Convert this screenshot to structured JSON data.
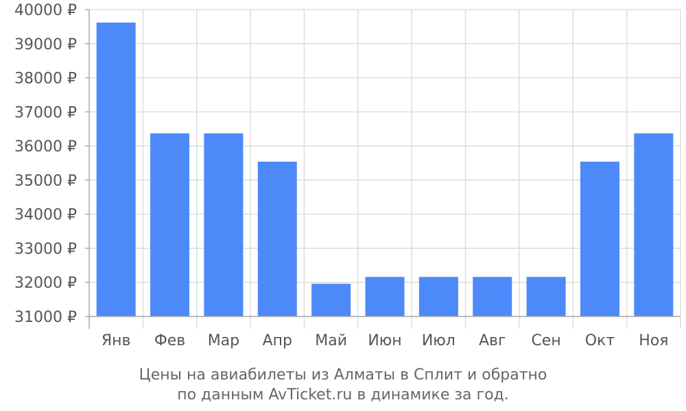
{
  "chart_data": {
    "type": "bar",
    "categories": [
      "Янв",
      "Фев",
      "Мар",
      "Апр",
      "Май",
      "Июн",
      "Июл",
      "Авг",
      "Сен",
      "Окт",
      "Ноя"
    ],
    "values": [
      39620,
      36370,
      36370,
      35540,
      31960,
      32160,
      32160,
      32160,
      32160,
      35540,
      36370
    ],
    "ylim": [
      31000,
      40000
    ],
    "yticks": [
      31000,
      32000,
      33000,
      34000,
      35000,
      36000,
      37000,
      38000,
      39000,
      40000
    ],
    "tick_suffix": " ₽",
    "grid": true,
    "bar_color": "#4d89f9",
    "grid_color": "#dddddd",
    "axis_color": "#aaaaaa"
  },
  "caption": {
    "line1": "Цены на авиабилеты из Алматы в Сплит и обратно",
    "line2": "по данным AvTicket.ru в динамике за год."
  }
}
